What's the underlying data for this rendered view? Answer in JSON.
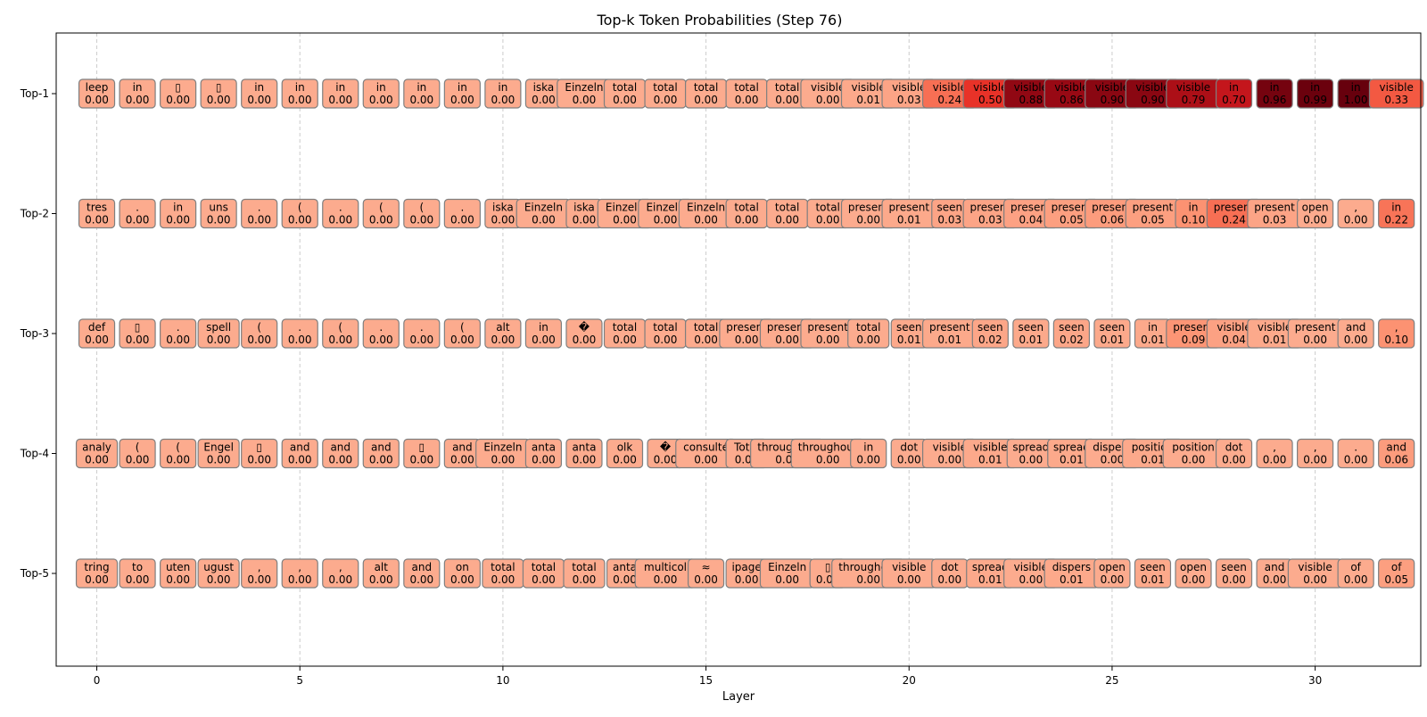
{
  "chart_data": {
    "type": "heatmap",
    "title": "Top-k Token Probabilities (Step 76)",
    "xlabel": "Layer",
    "ylabel": "",
    "xlim": [
      -1,
      32.6
    ],
    "x_ticks": [
      0,
      5,
      10,
      15,
      20,
      25,
      30
    ],
    "y_ticks": [
      "Top-1",
      "Top-2",
      "Top-3",
      "Top-4",
      "Top-5"
    ],
    "grid": "vertical-dashed",
    "colormap": "Reds",
    "layers": [
      0,
      1,
      2,
      3,
      4,
      5,
      6,
      7,
      8,
      9,
      10,
      11,
      12,
      13,
      14,
      15,
      16,
      17,
      18,
      19,
      20,
      21,
      22,
      23,
      24,
      25,
      26,
      27,
      28,
      29,
      30,
      31,
      32
    ],
    "rows": [
      {
        "label": "Top-1",
        "tokens": [
          "leep",
          "in",
          "▯",
          "▯",
          "in",
          "in",
          "in",
          "in",
          "in",
          "in",
          "in",
          "iska",
          "Einzeln",
          "total",
          "total",
          "total",
          "total",
          "total",
          "visible",
          "visible",
          "visible",
          "visible",
          "visible",
          "visible",
          "visible",
          "visible",
          "visible",
          "visible",
          "in",
          "in",
          "in",
          "in",
          "visible"
        ],
        "probs": [
          "0.00",
          "0.00",
          "0.00",
          "0.00",
          "0.00",
          "0.00",
          "0.00",
          "0.00",
          "0.00",
          "0.00",
          "0.00",
          "0.00",
          "0.00",
          "0.00",
          "0.00",
          "0.00",
          "0.00",
          "0.00",
          "0.00",
          "0.01",
          "0.03",
          "0.24",
          "0.50",
          "0.88",
          "0.86",
          "0.90",
          "0.90",
          "0.79",
          "0.70",
          "0.96",
          "0.99",
          "1.00",
          "0.33"
        ]
      },
      {
        "label": "Top-2",
        "tokens": [
          "tres",
          ".",
          "in",
          "uns",
          ".",
          "(",
          ".",
          "(",
          "(",
          ".",
          "iska",
          "Einzeln",
          "iska",
          "Einzeln",
          "Einzeln",
          "Einzeln",
          "total",
          "total",
          "total",
          "present",
          "present",
          "seen",
          "present",
          "present",
          "present",
          "present",
          "present",
          "in",
          "present",
          "present",
          "open",
          ",",
          "in"
        ],
        "probs": [
          "0.00",
          "0.00",
          "0.00",
          "0.00",
          "0.00",
          "0.00",
          "0.00",
          "0.00",
          "0.00",
          "0.00",
          "0.00",
          "0.00",
          "0.00",
          "0.00",
          "0.00",
          "0.00",
          "0.00",
          "0.00",
          "0.00",
          "0.00",
          "0.01",
          "0.03",
          "0.03",
          "0.04",
          "0.05",
          "0.06",
          "0.05",
          "0.10",
          "0.24",
          "0.03",
          "0.00",
          "0.00",
          "0.22"
        ]
      },
      {
        "label": "Top-3",
        "tokens": [
          "def",
          "▯",
          ".",
          "spell",
          "(",
          ".",
          "(",
          ".",
          ".",
          "(",
          "alt",
          "in",
          "�",
          "total",
          "total",
          "total",
          "present",
          "present",
          "present",
          "total",
          "seen",
          "present",
          "seen",
          "seen",
          "seen",
          "seen",
          "in",
          "present",
          "visible",
          "visible",
          "present",
          "and",
          ","
        ],
        "probs": [
          "0.00",
          "0.00",
          "0.00",
          "0.00",
          "0.00",
          "0.00",
          "0.00",
          "0.00",
          "0.00",
          "0.00",
          "0.00",
          "0.00",
          "0.00",
          "0.00",
          "0.00",
          "0.00",
          "0.00",
          "0.00",
          "0.00",
          "0.00",
          "0.01",
          "0.01",
          "0.02",
          "0.01",
          "0.02",
          "0.01",
          "0.01",
          "0.09",
          "0.04",
          "0.01",
          "0.00",
          "0.00",
          "0.10"
        ]
      },
      {
        "label": "Top-4",
        "tokens": [
          "analy",
          "(",
          "(",
          "Engel",
          "▯",
          "and",
          "and",
          "and",
          "▯",
          "and",
          "Einzeln",
          "anta",
          "anta",
          "olk",
          "�",
          "consulté",
          "Total",
          "throughout",
          "throughout",
          "in",
          "dot",
          "visible",
          "visible",
          "spread",
          "spread",
          "dispers",
          "position",
          "position",
          "dot",
          ",",
          ",",
          ".",
          "and"
        ],
        "probs": [
          "0.00",
          "0.00",
          "0.00",
          "0.00",
          "0.00",
          "0.00",
          "0.00",
          "0.00",
          "0.00",
          "0.00",
          "0.00",
          "0.00",
          "0.00",
          "0.00",
          "0.00",
          "0.00",
          "0.00",
          "0.00",
          "0.00",
          "0.00",
          "0.00",
          "0.00",
          "0.01",
          "0.00",
          "0.01",
          "0.00",
          "0.01",
          "0.00",
          "0.00",
          "0.00",
          "0.00",
          "0.00",
          "0.06"
        ]
      },
      {
        "label": "Top-5",
        "tokens": [
          "tring",
          "to",
          "uten",
          "ugust",
          ",",
          ",",
          ",",
          "alt",
          "and",
          "on",
          "total",
          "total",
          "total",
          "anta",
          "multicol",
          "≈",
          "ipage",
          "Einzeln",
          "▯",
          "throughout",
          "visible",
          "dot",
          "spread",
          "visible",
          "dispers",
          "open",
          "seen",
          "open",
          "seen",
          "and",
          "visible",
          "of",
          "of"
        ],
        "probs": [
          "0.00",
          "0.00",
          "0.00",
          "0.00",
          "0.00",
          "0.00",
          "0.00",
          "0.00",
          "0.00",
          "0.00",
          "0.00",
          "0.00",
          "0.00",
          "0.00",
          "0.00",
          "0.00",
          "0.00",
          "0.00",
          "0.00",
          "0.00",
          "0.00",
          "0.00",
          "0.01",
          "0.00",
          "0.01",
          "0.00",
          "0.01",
          "0.00",
          "0.00",
          "0.00",
          "0.00",
          "0.00",
          "0.05"
        ]
      }
    ]
  }
}
